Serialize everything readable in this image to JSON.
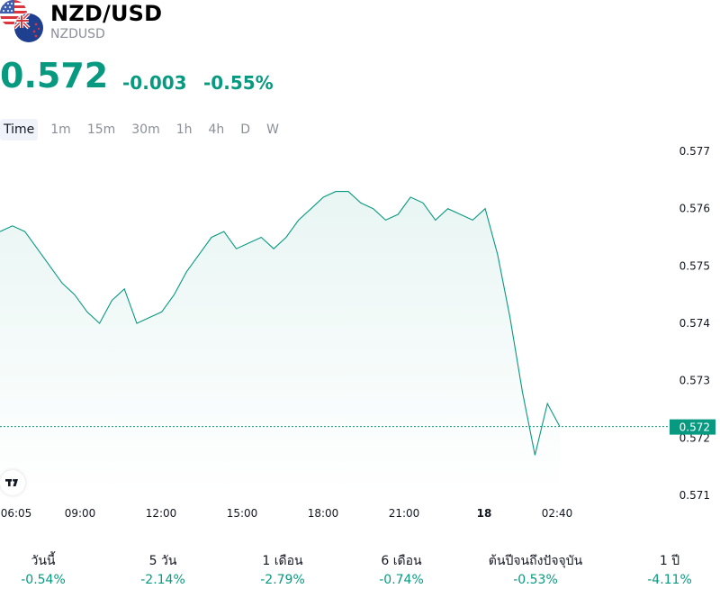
{
  "header": {
    "symbol_title": "NZD/USD",
    "symbol_code": "NZDUSD"
  },
  "quote": {
    "price": "0.572",
    "change": "-0.003",
    "change_percent": "-0.55%",
    "color_up_down": "#089981"
  },
  "timeframes": [
    {
      "label": "Time",
      "active": true
    },
    {
      "label": "1m",
      "active": false
    },
    {
      "label": "15m",
      "active": false
    },
    {
      "label": "30m",
      "active": false
    },
    {
      "label": "1h",
      "active": false
    },
    {
      "label": "4h",
      "active": false
    },
    {
      "label": "D",
      "active": false
    },
    {
      "label": "W",
      "active": false
    }
  ],
  "chart_data": {
    "type": "area",
    "x_tick_labels": [
      "06:05",
      "09:00",
      "12:00",
      "15:00",
      "18:00",
      "21:00",
      "18",
      "02:40"
    ],
    "x_tick_bold": [
      "18"
    ],
    "y_tick_labels": [
      "0.577",
      "0.576",
      "0.575",
      "0.574",
      "0.573",
      "0.572",
      "0.571"
    ],
    "ylim": [
      0.571,
      0.577
    ],
    "current_price_label": "0.572",
    "current_price_value": 0.5722,
    "line_color": "#089981",
    "series": [
      {
        "x": [
          "06:05",
          "06:30",
          "07:00",
          "07:30",
          "08:00",
          "08:30",
          "09:00",
          "09:30",
          "10:00",
          "10:30",
          "11:00",
          "11:30",
          "12:00",
          "12:30",
          "13:00",
          "13:30",
          "14:00",
          "14:30",
          "15:00",
          "15:30",
          "16:00",
          "16:30",
          "17:00",
          "17:30",
          "18:00",
          "18:30",
          "19:00",
          "19:30",
          "20:00",
          "20:30",
          "21:00",
          "21:30",
          "22:00",
          "22:30",
          "23:00",
          "23:30",
          "00:00",
          "00:30",
          "01:00",
          "01:15",
          "01:30",
          "01:45",
          "02:00",
          "02:15",
          "02:30",
          "02:40"
        ],
        "values": [
          0.5756,
          0.5757,
          0.5756,
          0.5753,
          0.575,
          0.5747,
          0.5745,
          0.5742,
          0.574,
          0.5744,
          0.5746,
          0.574,
          0.5741,
          0.5742,
          0.5745,
          0.5749,
          0.5752,
          0.5755,
          0.5756,
          0.5753,
          0.5754,
          0.5755,
          0.5753,
          0.5755,
          0.5758,
          0.576,
          0.5762,
          0.5763,
          0.5763,
          0.5761,
          0.576,
          0.5758,
          0.5759,
          0.5762,
          0.5761,
          0.5758,
          0.576,
          0.5759,
          0.5758,
          0.576,
          0.5752,
          0.5741,
          0.5728,
          0.5717,
          0.5726,
          0.5722
        ]
      }
    ],
    "grid": false
  },
  "performance": [
    {
      "label": "วันนี้",
      "value": "-0.54%"
    },
    {
      "label": "5 วัน",
      "value": "-2.14%"
    },
    {
      "label": "1 เดือน",
      "value": "-2.79%"
    },
    {
      "label": "6 เดือน",
      "value": "-0.74%"
    },
    {
      "label": "ต้นปีจนถึงปัจจุบัน",
      "value": "-0.53%"
    },
    {
      "label": "1 ปี",
      "value": "-4.11%"
    }
  ],
  "icons": {
    "flag_primary": "us-flag-icon",
    "flag_secondary": "nz-flag-icon",
    "watermark": "tradingview-logo-icon"
  }
}
